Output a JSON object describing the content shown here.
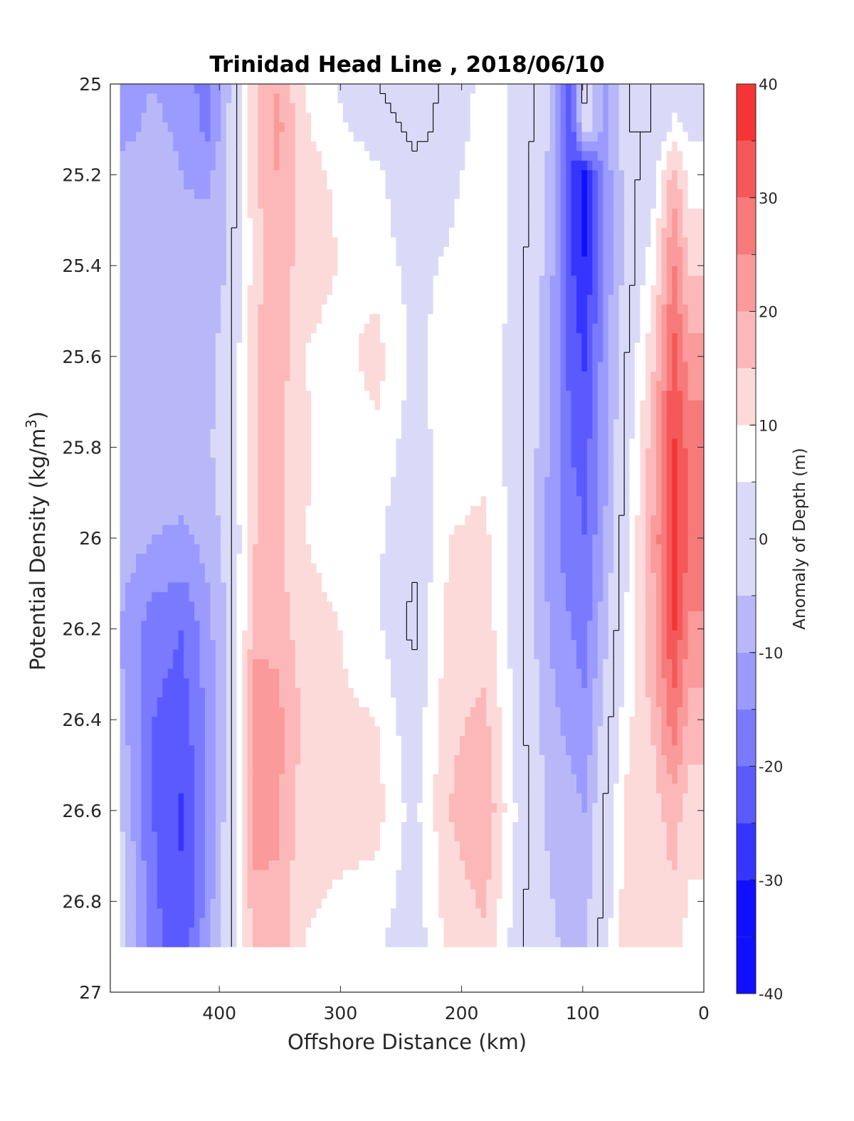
{
  "chart_data": {
    "type": "heatmap",
    "title": "Trinidad Head Line , 2018/06/10",
    "xlabel": "Offshore Distance (km)",
    "ylabel": "Potential Density (kg/m",
    "ylabel_superscript": "3",
    "ylabel_suffix": ")",
    "colorbar_label": "Anomaly of Depth (m)",
    "xlim": [
      490,
      0
    ],
    "ylim": [
      25,
      27
    ],
    "x_reversed": true,
    "y_reversed": true,
    "x_ticks": [
      400,
      300,
      200,
      100,
      0
    ],
    "y_ticks": [
      "25",
      "25.2",
      "25.4",
      "25.6",
      "25.8",
      "26",
      "26.2",
      "26.4",
      "26.6",
      "26.8",
      "27"
    ],
    "colorbar_ticks": [
      "40",
      "30",
      "20",
      "10",
      "0",
      "-10",
      "-20",
      "-30",
      "-40"
    ],
    "colorbar_range": [
      -40,
      40
    ],
    "color_levels": [
      -40,
      -35,
      -30,
      -25,
      -20,
      -15,
      -10,
      -5,
      5,
      10,
      15,
      20,
      25,
      30,
      35,
      40
    ],
    "data_extent": {
      "density_max": 26.9,
      "x_max": 482
    },
    "zero_contour_color": "#000000",
    "colors": {
      "lvl_neg35": "#1010ff",
      "lvl_neg30": "#3535ff",
      "lvl_neg25": "#5a5aff",
      "lvl_neg20": "#7a7aff",
      "lvl_neg15": "#9a9aff",
      "lvl_neg10": "#b8b8f8",
      "lvl_neg5": "#dadaf8",
      "lvl_zero": "#ffffff",
      "lvl_pos5": "#fcdada",
      "lvl_pos10": "#fcb8b8",
      "lvl_pos15": "#fa9a9a",
      "lvl_pos20": "#f77a7a",
      "lvl_pos25": "#f55858",
      "lvl_pos30": "#f53535",
      "lvl_pos35": "#ff1010"
    },
    "anomaly_profiles": [
      {
        "x": 482,
        "values": [
          -12,
          -12,
          -8,
          -7,
          -6,
          -6,
          -7,
          -10,
          -8,
          -4,
          -2
        ]
      },
      {
        "x": 455,
        "values": [
          -10,
          -9,
          -7,
          -6,
          -6,
          -6,
          -10,
          -18,
          -20,
          -20,
          -18
        ]
      },
      {
        "x": 430,
        "values": [
          -12,
          -11,
          -10,
          -9,
          -8,
          -7,
          -11,
          -20,
          -22,
          -26,
          -24
        ]
      },
      {
        "x": 410,
        "values": [
          -18,
          -16,
          -11,
          -8,
          -7,
          -6,
          -8,
          -12,
          -14,
          -15,
          -12
        ]
      },
      {
        "x": 395,
        "values": [
          -8,
          -7,
          -6,
          -5,
          -3,
          -2,
          -4,
          -5,
          -5,
          -4,
          -3
        ]
      },
      {
        "x": 370,
        "values": [
          14,
          15,
          14,
          13,
          15,
          15,
          15,
          18,
          25,
          22,
          18
        ]
      },
      {
        "x": 352,
        "values": [
          20,
          22,
          20,
          19,
          18,
          17,
          16,
          18,
          22,
          21,
          18
        ]
      },
      {
        "x": 330,
        "values": [
          10,
          11,
          12,
          12,
          10,
          11,
          10,
          12,
          14,
          12,
          10
        ]
      },
      {
        "x": 300,
        "values": [
          4,
          6,
          9,
          10,
          8,
          6,
          8,
          10,
          11,
          12,
          8
        ]
      },
      {
        "x": 270,
        "values": [
          0,
          2,
          6,
          8,
          12,
          9,
          6,
          6,
          10,
          12,
          6
        ]
      },
      {
        "x": 240,
        "values": [
          -2,
          -1,
          1,
          3,
          4,
          2,
          0,
          -1,
          1,
          3,
          1
        ]
      },
      {
        "x": 210,
        "values": [
          1,
          1,
          3,
          6,
          7,
          8,
          10,
          12,
          14,
          15,
          12
        ]
      },
      {
        "x": 180,
        "values": [
          7,
          8,
          9,
          10,
          9,
          9,
          11,
          13,
          16,
          19,
          14
        ]
      },
      {
        "x": 150,
        "values": [
          4,
          3,
          2,
          1,
          1,
          1,
          0,
          0,
          1,
          2,
          0
        ]
      },
      {
        "x": 128,
        "values": [
          -4,
          -5,
          -6,
          -7,
          -8,
          -10,
          -12,
          -10,
          -8,
          -6,
          -4
        ]
      },
      {
        "x": 110,
        "values": [
          -22,
          -25,
          -25,
          -24,
          -22,
          -20,
          -18,
          -15,
          -12,
          -8,
          -6
        ]
      },
      {
        "x": 98,
        "values": [
          2,
          0,
          -33,
          -30,
          -26,
          -22,
          -20,
          -17,
          -14,
          -10,
          -5
        ]
      },
      {
        "x": 82,
        "values": [
          -12,
          -12,
          -13,
          -14,
          -12,
          -12,
          -10,
          -7,
          -3,
          0,
          2
        ]
      },
      {
        "x": 62,
        "values": [
          0,
          0,
          -2,
          -2,
          1,
          3,
          5,
          7,
          9,
          12,
          15
        ]
      },
      {
        "x": 42,
        "values": [
          0,
          0,
          3,
          8,
          14,
          18,
          20,
          19,
          16,
          12,
          10
        ]
      },
      {
        "x": 25,
        "values": [
          4,
          6,
          18,
          26,
          32,
          36,
          38,
          36,
          28,
          18,
          12
        ]
      },
      {
        "x": 12,
        "values": [
          2,
          4,
          8,
          14,
          22,
          28,
          30,
          24,
          18,
          12,
          8
        ]
      }
    ],
    "profile_densities": [
      25.0,
      25.1,
      25.2,
      25.4,
      25.6,
      25.8,
      26.0,
      26.2,
      26.4,
      26.6,
      26.9
    ]
  }
}
